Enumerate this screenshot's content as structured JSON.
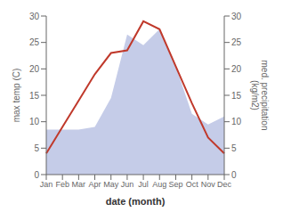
{
  "chart_data": {
    "type": "line",
    "categories": [
      "Jan",
      "Feb",
      "Mar",
      "Apr",
      "May",
      "Jun",
      "Jul",
      "Aug",
      "Sep",
      "Oct",
      "Nov",
      "Dec"
    ],
    "series": [
      {
        "type": "area",
        "axis": "y2",
        "color": "#c5cce8",
        "values": [
          8.5,
          8.5,
          8.5,
          9.0,
          14.5,
          26.5,
          24.5,
          27.5,
          20.5,
          11.5,
          9.5,
          11.0
        ]
      },
      {
        "type": "line",
        "color": "#c0392b",
        "values": [
          4.0,
          9.0,
          14.0,
          19.0,
          23.0,
          23.5,
          29.0,
          27.5,
          20.5,
          13.5,
          7.0,
          4.0
        ]
      }
    ],
    "xlabel": "date (month)",
    "ylabel": "max temp (C)",
    "y2label": "med. precipitation\n(kg/m2)",
    "ylim": [
      0,
      30
    ],
    "yticks": [
      0,
      5,
      10,
      15,
      20,
      25,
      30
    ],
    "y2lim": [
      0,
      30
    ],
    "y2ticks": [
      0,
      5,
      10,
      15,
      20,
      25,
      30
    ],
    "grid": false
  }
}
